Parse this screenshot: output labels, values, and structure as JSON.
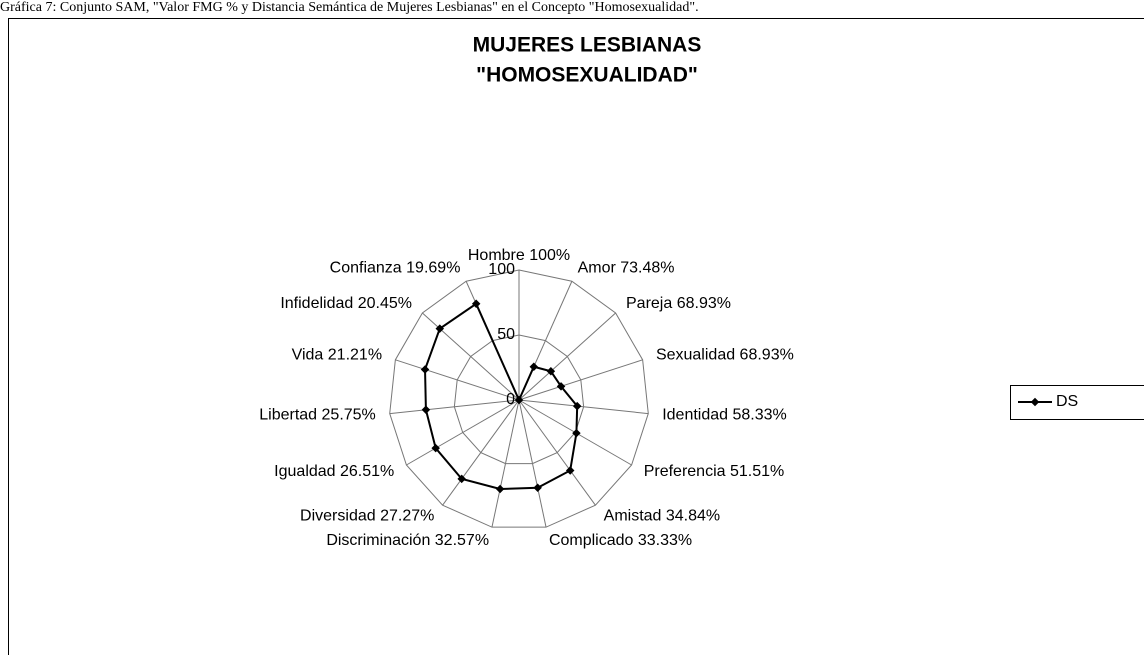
{
  "caption": "Gráfica 7: Conjunto SAM, \"Valor FMG % y Distancia Semántica de Mujeres Lesbianas\" en el Concepto \"Homosexualidad\".",
  "chart_data": {
    "type": "radar",
    "title": [
      "MUJERES LESBIANAS",
      "\"HOMOSEXUALIDAD\""
    ],
    "categories": [
      "Hombre 100%",
      "Amor 73.48%",
      "Pareja  68.93%",
      "Sexualidad 68.93%",
      "Identidad  58.33%",
      "Preferencia  51.51%",
      "Amistad  34.84%",
      "Complicado 33.33%",
      "Discriminación 32.57%",
      "Diversidad 27.27%",
      "Igualdad 26.51%",
      "Libertad 25.75%",
      "Vida 21.21%",
      "Infidelidad 20.45%",
      "Confianza 19.69%"
    ],
    "series": [
      {
        "name": "DS",
        "color": "#000000",
        "values": [
          0,
          28,
          33,
          34,
          45,
          51,
          67,
          69,
          70,
          75,
          74,
          72,
          76,
          82,
          81
        ]
      }
    ],
    "ylim": [
      0,
      100
    ],
    "yticks": [
      0,
      50,
      100
    ],
    "grid": true,
    "legend": "right"
  }
}
